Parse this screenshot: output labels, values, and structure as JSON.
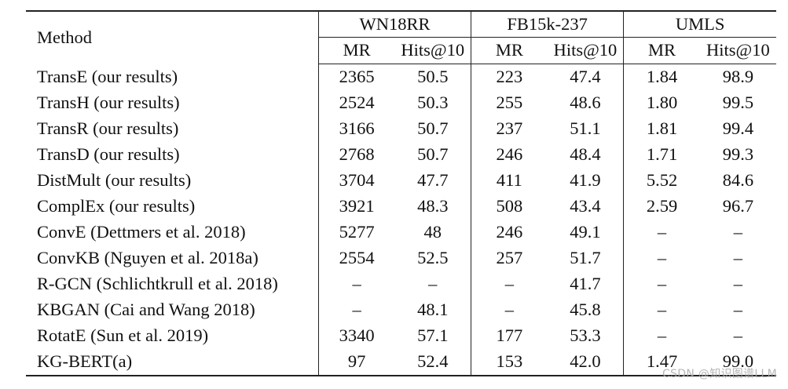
{
  "table": {
    "method_header": "Method",
    "groups": [
      "WN18RR",
      "FB15k-237",
      "UMLS"
    ],
    "subheaders": [
      "MR",
      "Hits@10"
    ],
    "rows": [
      {
        "method": "TransE (our results)",
        "values": [
          "2365",
          "50.5",
          "223",
          "47.4",
          "1.84",
          "98.9"
        ],
        "bold": []
      },
      {
        "method": "TransH (our results)",
        "values": [
          "2524",
          "50.3",
          "255",
          "48.6",
          "1.80",
          "99.5"
        ],
        "bold": [
          5
        ]
      },
      {
        "method": "TransR (our results)",
        "values": [
          "3166",
          "50.7",
          "237",
          "51.1",
          "1.81",
          "99.4"
        ],
        "bold": []
      },
      {
        "method": "TransD (our results)",
        "values": [
          "2768",
          "50.7",
          "246",
          "48.4",
          "1.71",
          "99.3"
        ],
        "bold": []
      },
      {
        "method": "DistMult (our results)",
        "values": [
          "3704",
          "47.7",
          "411",
          "41.9",
          "5.52",
          "84.6"
        ],
        "bold": []
      },
      {
        "method": "ComplEx (our results)",
        "values": [
          "3921",
          "48.3",
          "508",
          "43.4",
          "2.59",
          "96.7"
        ],
        "bold": []
      },
      {
        "method": "ConvE (Dettmers et al. 2018)",
        "values": [
          "5277",
          "48",
          "246",
          "49.1",
          "–",
          "–"
        ],
        "bold": []
      },
      {
        "method": "ConvKB (Nguyen et al. 2018a)",
        "values": [
          "2554",
          "52.5",
          "257",
          "51.7",
          "–",
          "–"
        ],
        "bold": []
      },
      {
        "method": "R-GCN (Schlichtkrull et al. 2018)",
        "values": [
          "–",
          "–",
          "–",
          "41.7",
          "–",
          "–"
        ],
        "bold": []
      },
      {
        "method": "KBGAN (Cai and Wang 2018)",
        "values": [
          "–",
          "48.1",
          "–",
          "45.8",
          "–",
          "–"
        ],
        "bold": []
      },
      {
        "method": "RotatE (Sun et al. 2019)",
        "values": [
          "3340",
          "57.1",
          "177",
          "53.3",
          "–",
          "–"
        ],
        "bold": [
          1,
          3
        ]
      },
      {
        "method": "KG-BERT(a)",
        "values": [
          "97",
          "52.4",
          "153",
          "42.0",
          "1.47",
          "99.0"
        ],
        "bold": [
          0,
          2,
          4
        ]
      }
    ]
  },
  "watermark": "CSDN @知识图谱LLM"
}
